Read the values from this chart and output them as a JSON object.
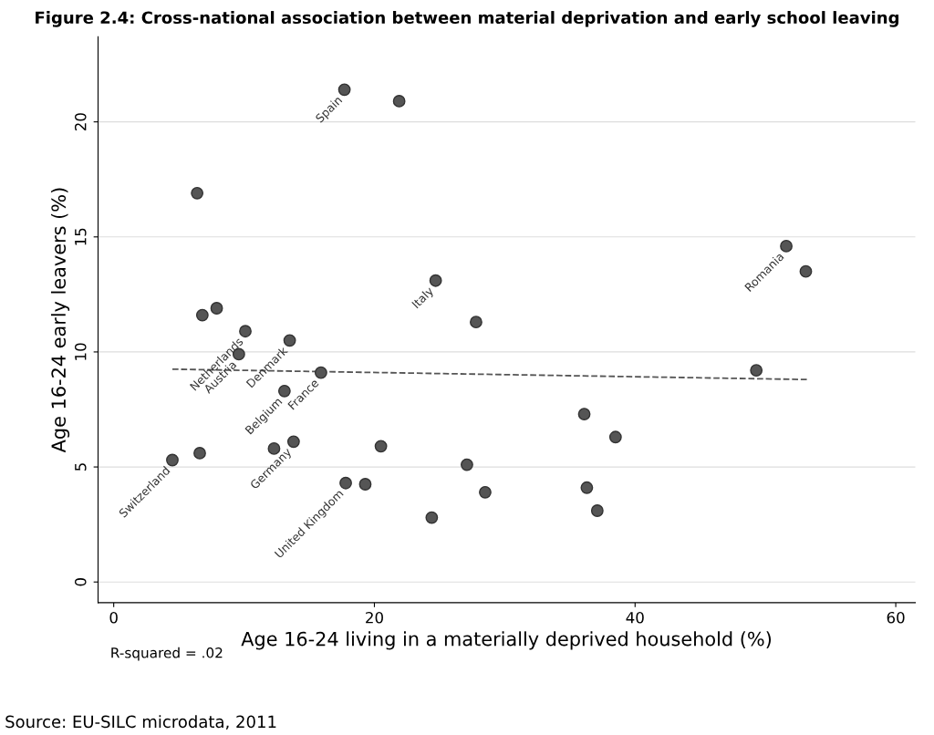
{
  "chart_data": {
    "type": "scatter",
    "title": "Figure 2.4: Cross-national association between material deprivation and early school leaving",
    "xlabel": "Age 16-24 living in a materially deprived household (%)",
    "ylabel": "Age 16-24 early leavers (%)",
    "xlim": [
      -1.2,
      61.5
    ],
    "ylim": [
      -0.9,
      23.7
    ],
    "xticks": [
      0,
      20,
      40,
      60
    ],
    "yticks": [
      0,
      5,
      10,
      15,
      20
    ],
    "grid": "y",
    "marker": "circle",
    "series": [
      {
        "color": "#555555",
        "x": [
          17.7,
          21.9,
          6.4,
          6.8,
          7.9,
          10.1,
          9.6,
          13.5,
          24.7,
          27.8,
          15.9,
          13.1,
          4.5,
          6.6,
          12.3,
          13.8,
          20.5,
          17.8,
          19.3,
          24.4,
          27.1,
          28.5,
          36.1,
          38.5,
          36.3,
          37.1,
          49.3,
          51.6,
          53.1
        ],
        "values": [
          21.4,
          20.9,
          16.9,
          11.6,
          11.9,
          10.9,
          9.9,
          10.5,
          13.1,
          11.3,
          9.1,
          8.3,
          5.3,
          5.6,
          5.8,
          6.1,
          5.9,
          4.3,
          4.25,
          2.8,
          5.1,
          3.9,
          7.3,
          6.3,
          4.1,
          3.1,
          9.2,
          14.6,
          13.5
        ]
      },
      {
        "type": "line",
        "color": "#555555",
        "line_style": "dashed",
        "marker": "none",
        "x": [
          4.5,
          53.2
        ],
        "values": [
          9.25,
          8.8
        ]
      }
    ],
    "annotations": [
      {
        "text": "Spain",
        "x": 17.7,
        "y": 21.4
      },
      {
        "text": "Netherlands",
        "x": 10.1,
        "y": 10.9
      },
      {
        "text": "Austria",
        "x": 9.6,
        "y": 9.9
      },
      {
        "text": "Denmark",
        "x": 13.5,
        "y": 10.5
      },
      {
        "text": "Italy",
        "x": 24.7,
        "y": 13.1
      },
      {
        "text": "France",
        "x": 15.9,
        "y": 9.1
      },
      {
        "text": "Belgium",
        "x": 13.1,
        "y": 8.3
      },
      {
        "text": "Switzerland",
        "x": 4.5,
        "y": 5.3
      },
      {
        "text": "Germany",
        "x": 13.8,
        "y": 6.1
      },
      {
        "text": "United Kingdom",
        "x": 17.8,
        "y": 4.3
      },
      {
        "text": "Romania",
        "x": 51.6,
        "y": 14.6
      },
      "R-squared = .02",
      "Source: EU-SILC microdata, 2011"
    ]
  }
}
